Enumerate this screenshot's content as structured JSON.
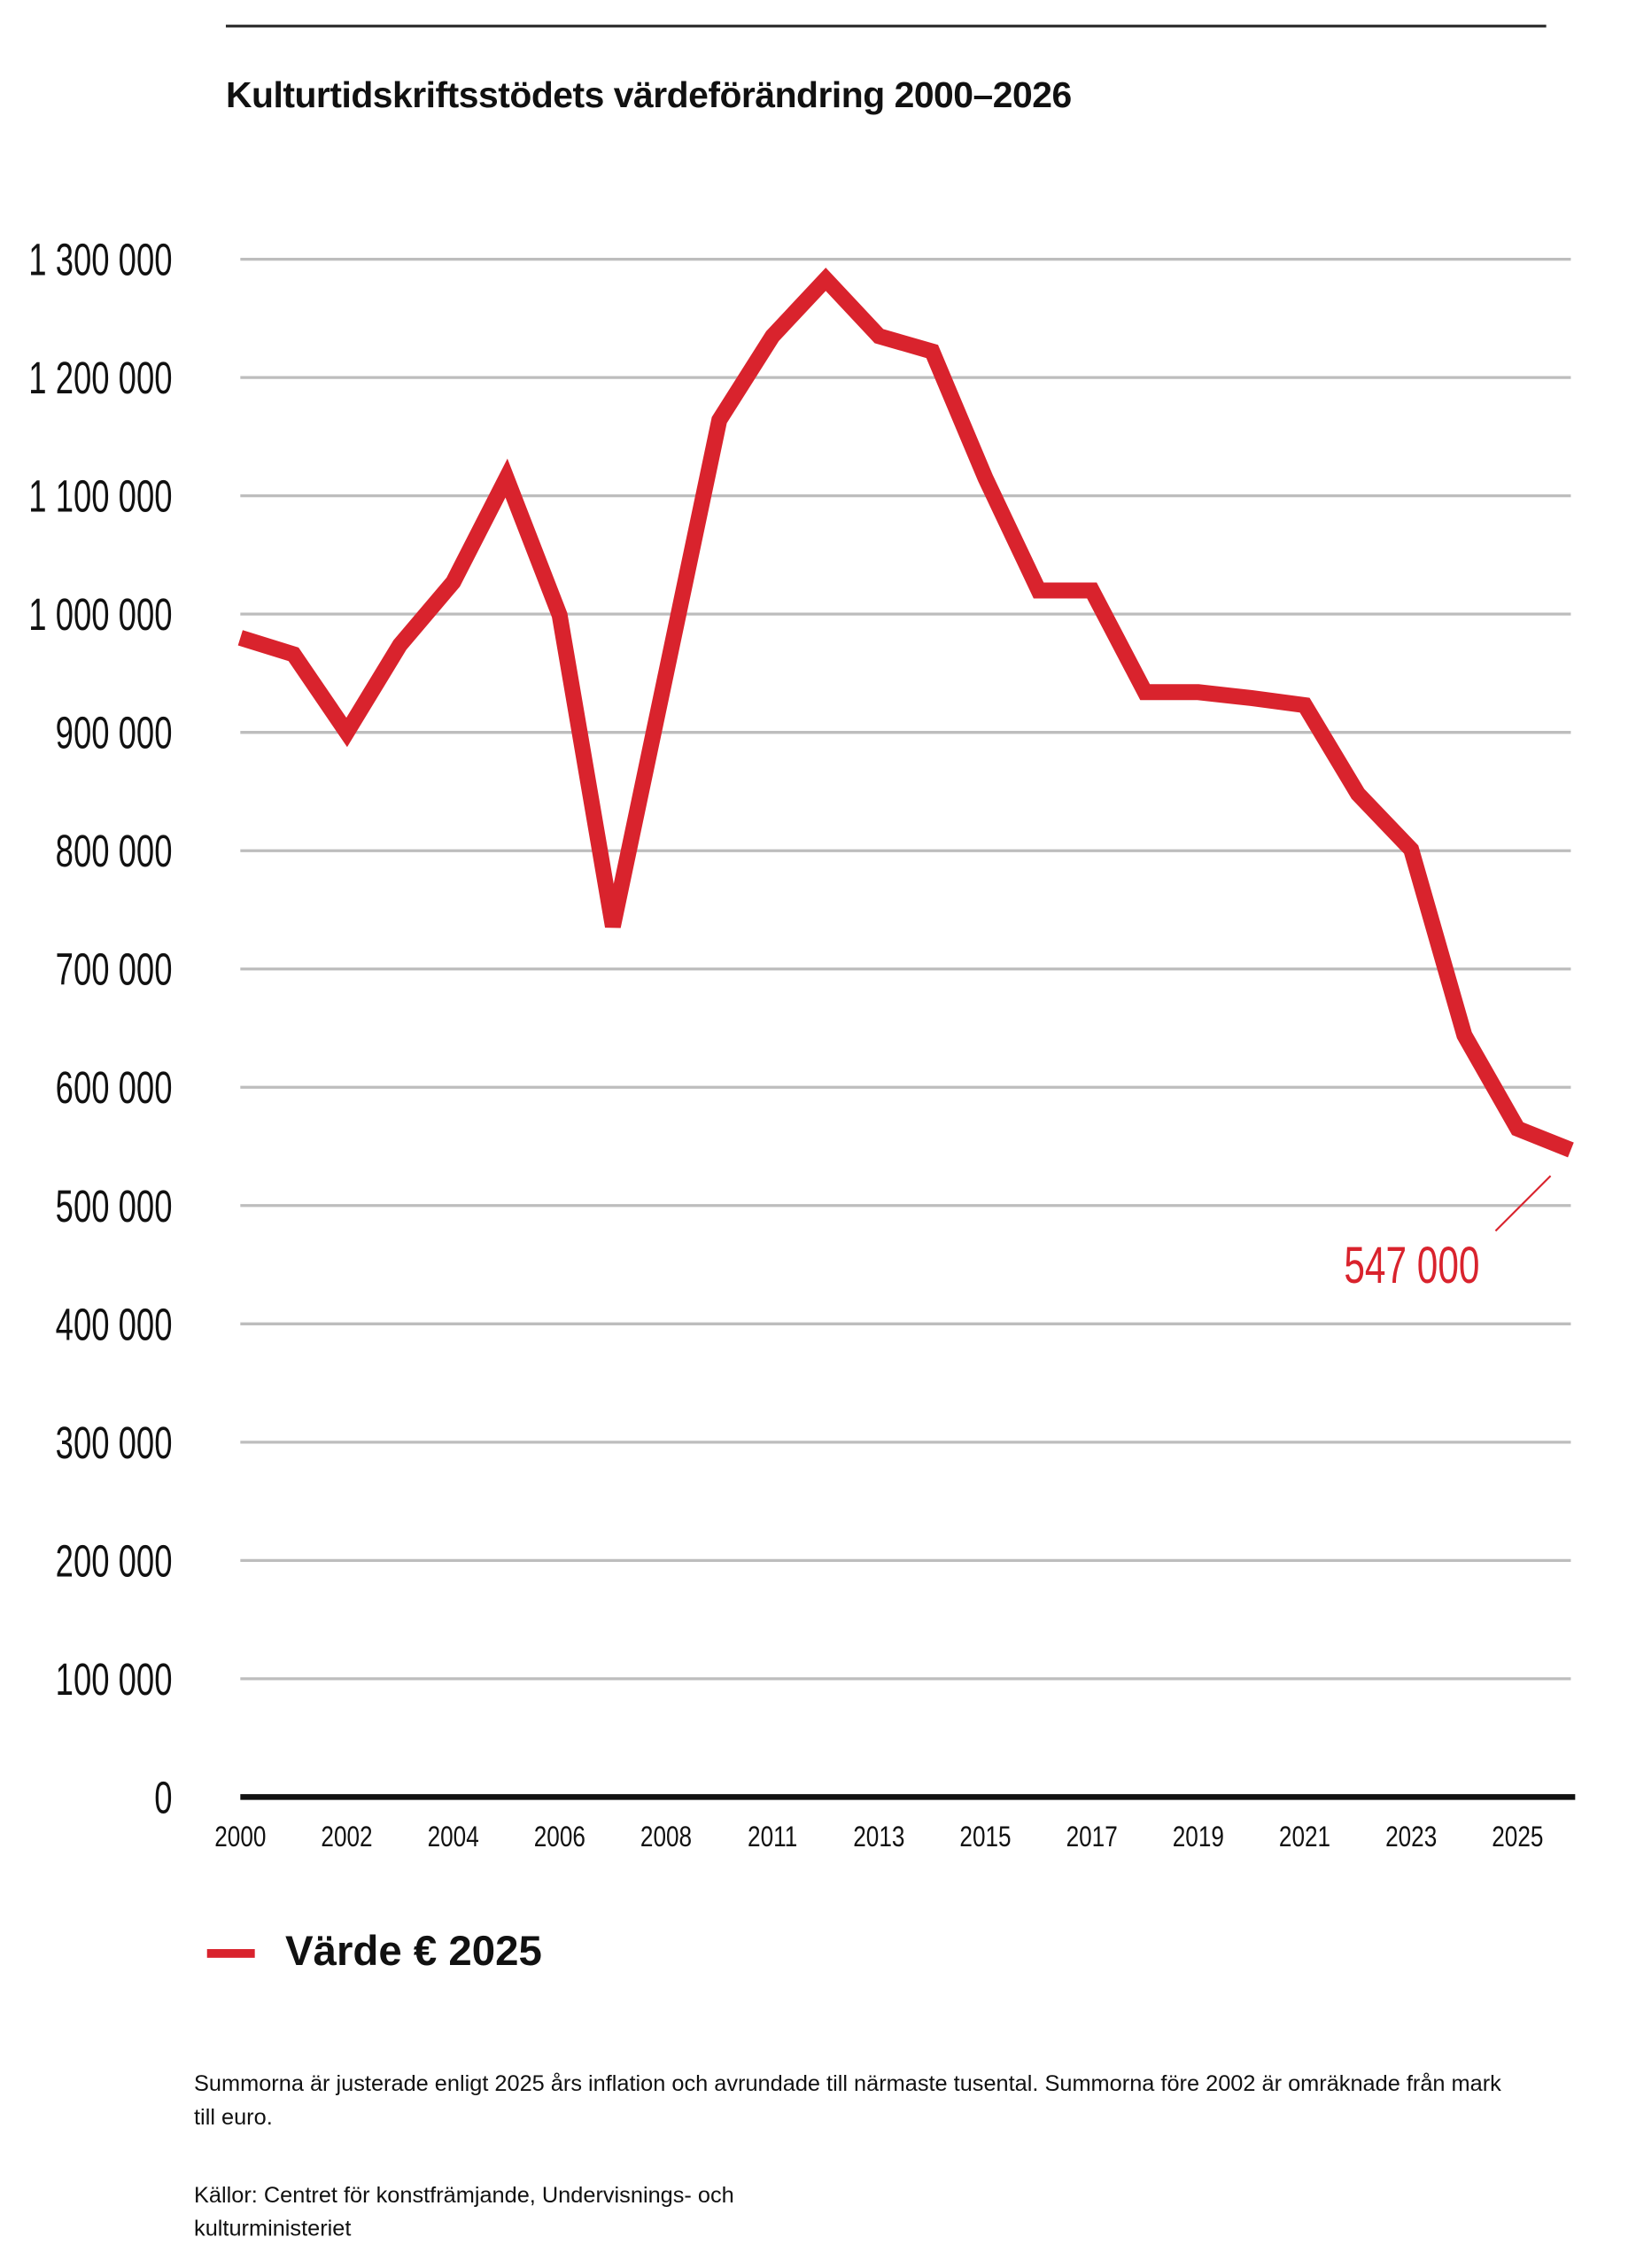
{
  "chart_data": {
    "type": "line",
    "title": "Kulturtidskriftsstödets värdeförändring 2000–2026",
    "x_points": [
      2000,
      2001,
      2002,
      2003,
      2004,
      2005,
      2006,
      2007,
      2008,
      2009,
      2011,
      2012,
      2013,
      2014,
      2015,
      2016,
      2017,
      2018,
      2019,
      2020,
      2021,
      2022,
      2023,
      2024,
      2025,
      2026
    ],
    "x_tick_labels": [
      "2000",
      "2002",
      "2004",
      "2006",
      "2008",
      "2011",
      "2013",
      "2015",
      "2017",
      "2019",
      "2021",
      "2023",
      "2025"
    ],
    "x_tick_indices": [
      0,
      2,
      4,
      6,
      8,
      10,
      12,
      14,
      16,
      18,
      20,
      22,
      24
    ],
    "series": [
      {
        "name": "Värde € 2025",
        "color": "#d9232d",
        "values": [
          980000,
          966000,
          900000,
          974000,
          1027000,
          1115000,
          999000,
          736000,
          950000,
          1164000,
          1235000,
          1283000,
          1235000,
          1222000,
          1115000,
          1020000,
          1020000,
          934000,
          934000,
          929000,
          923000,
          848000,
          801000,
          644000,
          565000,
          547000
        ]
      }
    ],
    "ylim": [
      0,
      1300000
    ],
    "y_ticks": [
      0,
      100000,
      200000,
      300000,
      400000,
      500000,
      600000,
      700000,
      800000,
      900000,
      1000000,
      1100000,
      1200000,
      1300000
    ],
    "y_tick_labels": [
      "0",
      "100 000",
      "200 000",
      "300 000",
      "400 000",
      "500 000",
      "600 000",
      "700 000",
      "800 000",
      "900 000",
      "1 000 000",
      "1 100 000",
      "1 200 000",
      "1 300 000"
    ],
    "grid": true,
    "legend_position": "bottom-left",
    "annotation": "547 000",
    "annotation_color": "#d9232d"
  },
  "notes": {
    "footnote": "Summorna är justerade enligt 2025 års inflation och avrundade till närmaste tusental. Summorna före 2002 är omräknade från mark till euro.",
    "sources": "Källor: Centret för konstfrämjande, Undervisnings- och kulturministeriet"
  }
}
